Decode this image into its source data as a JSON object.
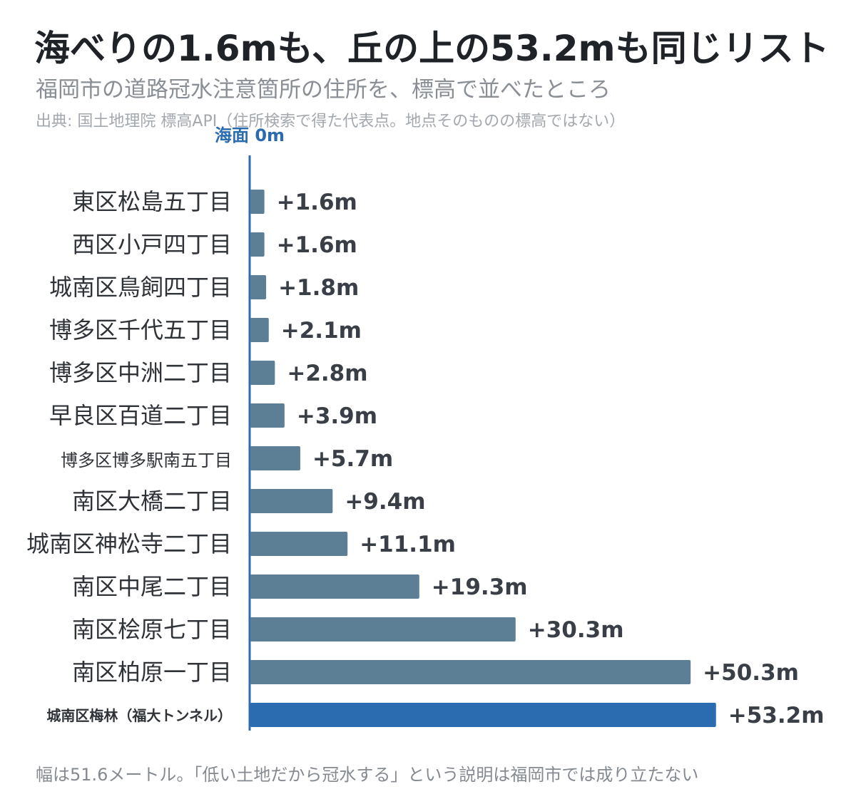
{
  "header": {
    "title": "海べりの1.6mも、丘の上の53.2mも同じリスト",
    "subtitle": "福岡市の道路冠水注意箇所の住所を、標高で並べたところ",
    "source": "出典: 国土地理院 標高API（住所検索で得た代表点。地点そのものの標高ではない）"
  },
  "footnote": "幅は51.6メートル。「低い土地だから冠水する」という説明は福岡市では成り立たない",
  "colors": {
    "bar": "#5d7f95",
    "highlight_bar": "#2b6bb0",
    "axis": "#2b6bb0"
  },
  "chart_data": {
    "type": "bar",
    "orientation": "horizontal",
    "axis_label": "海面 0m",
    "value_prefix": "+",
    "value_unit": "m",
    "categories": [
      "東区松島五丁目",
      "西区小戸四丁目",
      "城南区鳥飼四丁目",
      "博多区千代五丁目",
      "博多区中洲二丁目",
      "早良区百道二丁目",
      "博多区博多駅南五丁目",
      "南区大橋二丁目",
      "城南区神松寺二丁目",
      "南区中尾二丁目",
      "南区桧原七丁目",
      "南区柏原一丁目",
      "城南区梅林（福大トンネル）"
    ],
    "values": [
      1.6,
      1.6,
      1.8,
      2.1,
      2.8,
      3.9,
      5.7,
      9.4,
      11.1,
      19.3,
      30.3,
      50.3,
      53.2
    ],
    "value_labels": [
      "+1.6m",
      "+1.6m",
      "+1.8m",
      "+2.1m",
      "+2.8m",
      "+3.9m",
      "+5.7m",
      "+9.4m",
      "+11.1m",
      "+19.3m",
      "+30.3m",
      "+50.3m",
      "+53.2m"
    ],
    "highlight_index": 12,
    "xlim": [
      0,
      55
    ],
    "grid": false,
    "legend": false
  }
}
